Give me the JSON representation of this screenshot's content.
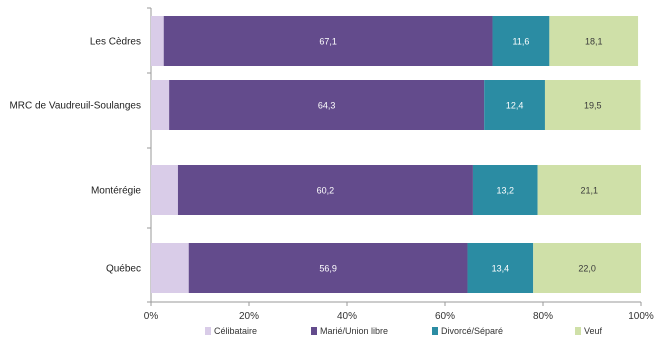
{
  "chart_data": {
    "type": "bar",
    "orientation": "horizontal",
    "stacked": true,
    "categories": [
      "Les Cèdres",
      "MRC de Vaudreuil-Soulanges",
      "Montérégie",
      "Québec"
    ],
    "series": [
      {
        "name": "Célibataire",
        "color": "#d9cce8",
        "values": [
          2.6,
          3.7,
          5.5,
          7.7
        ],
        "labels": [
          "2,6",
          "3,7",
          "5,5",
          "7,7"
        ]
      },
      {
        "name": "Marié/Union libre",
        "color": "#634b8c",
        "values": [
          67.1,
          64.3,
          60.2,
          56.9
        ],
        "labels": [
          "67,1",
          "64,3",
          "60,2",
          "56,9"
        ]
      },
      {
        "name": "Divorcé/Séparé",
        "color": "#2b8ca3",
        "values": [
          11.6,
          12.4,
          13.2,
          13.4
        ],
        "labels": [
          "11,6",
          "12,4",
          "13,2",
          "13,4"
        ]
      },
      {
        "name": "Veuf",
        "color": "#cfe0a8",
        "values": [
          18.1,
          19.5,
          21.1,
          22.0
        ],
        "labels": [
          "18,1",
          "19,5",
          "21,1",
          "22,0"
        ]
      }
    ],
    "xlim": [
      0,
      100
    ],
    "xticks": [
      "0%",
      "20%",
      "40%",
      "60%",
      "80%",
      "100%"
    ],
    "grid": false,
    "legend_position": "bottom"
  }
}
